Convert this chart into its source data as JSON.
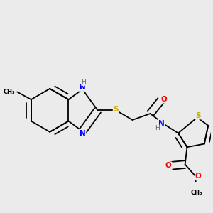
{
  "background_color": "#ebebeb",
  "bond_color": "#000000",
  "atom_colors": {
    "N": "#0000ff",
    "S": "#ccaa00",
    "O": "#ff0000",
    "C": "#000000",
    "H": "#556655"
  },
  "lw": 1.3,
  "fs": 7.5
}
